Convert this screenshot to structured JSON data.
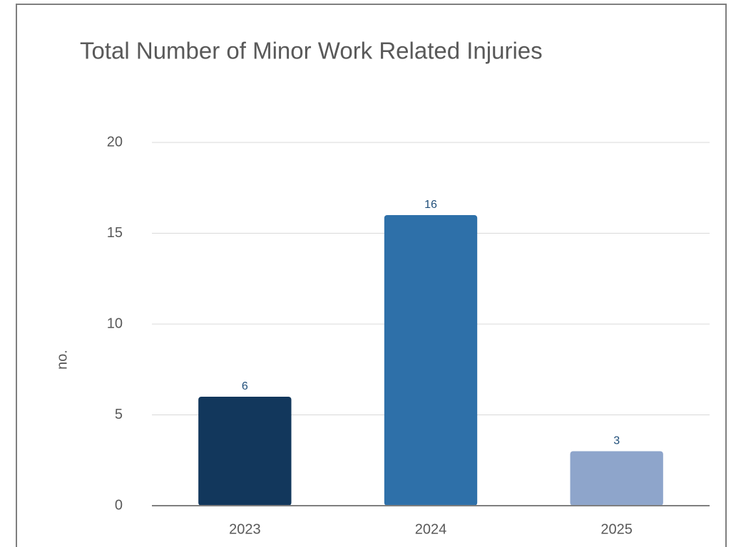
{
  "chart_data": {
    "type": "bar",
    "title": "Total Number of Minor Work Related Injuries",
    "y_label": "no.",
    "categories": [
      "2023",
      "2024",
      "2025"
    ],
    "values": [
      6,
      16,
      3
    ],
    "colors": [
      "#12375c",
      "#2e70a9",
      "#8ea5cb"
    ],
    "ylim": [
      0,
      20
    ],
    "yticks": [
      0,
      5,
      10,
      15,
      20
    ],
    "grid": true
  }
}
